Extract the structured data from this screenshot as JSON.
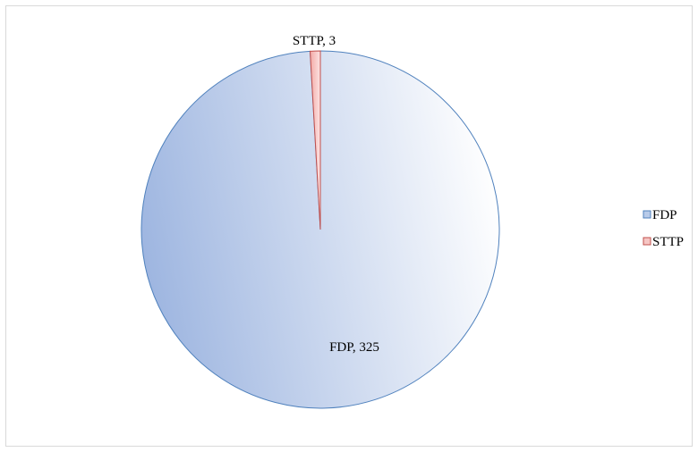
{
  "chart_data": {
    "type": "pie",
    "title": "",
    "slices": [
      {
        "name": "FDP",
        "value": 325,
        "label": "FDP, 325",
        "color": "#b8cbe9",
        "stroke": "#4f81bd"
      },
      {
        "name": "STTP",
        "value": 3,
        "label": "STTP, 3",
        "color": "#f6c6c4",
        "stroke": "#c0504d"
      }
    ],
    "legend": {
      "position": "right",
      "items": [
        "FDP",
        "STTP"
      ]
    }
  }
}
